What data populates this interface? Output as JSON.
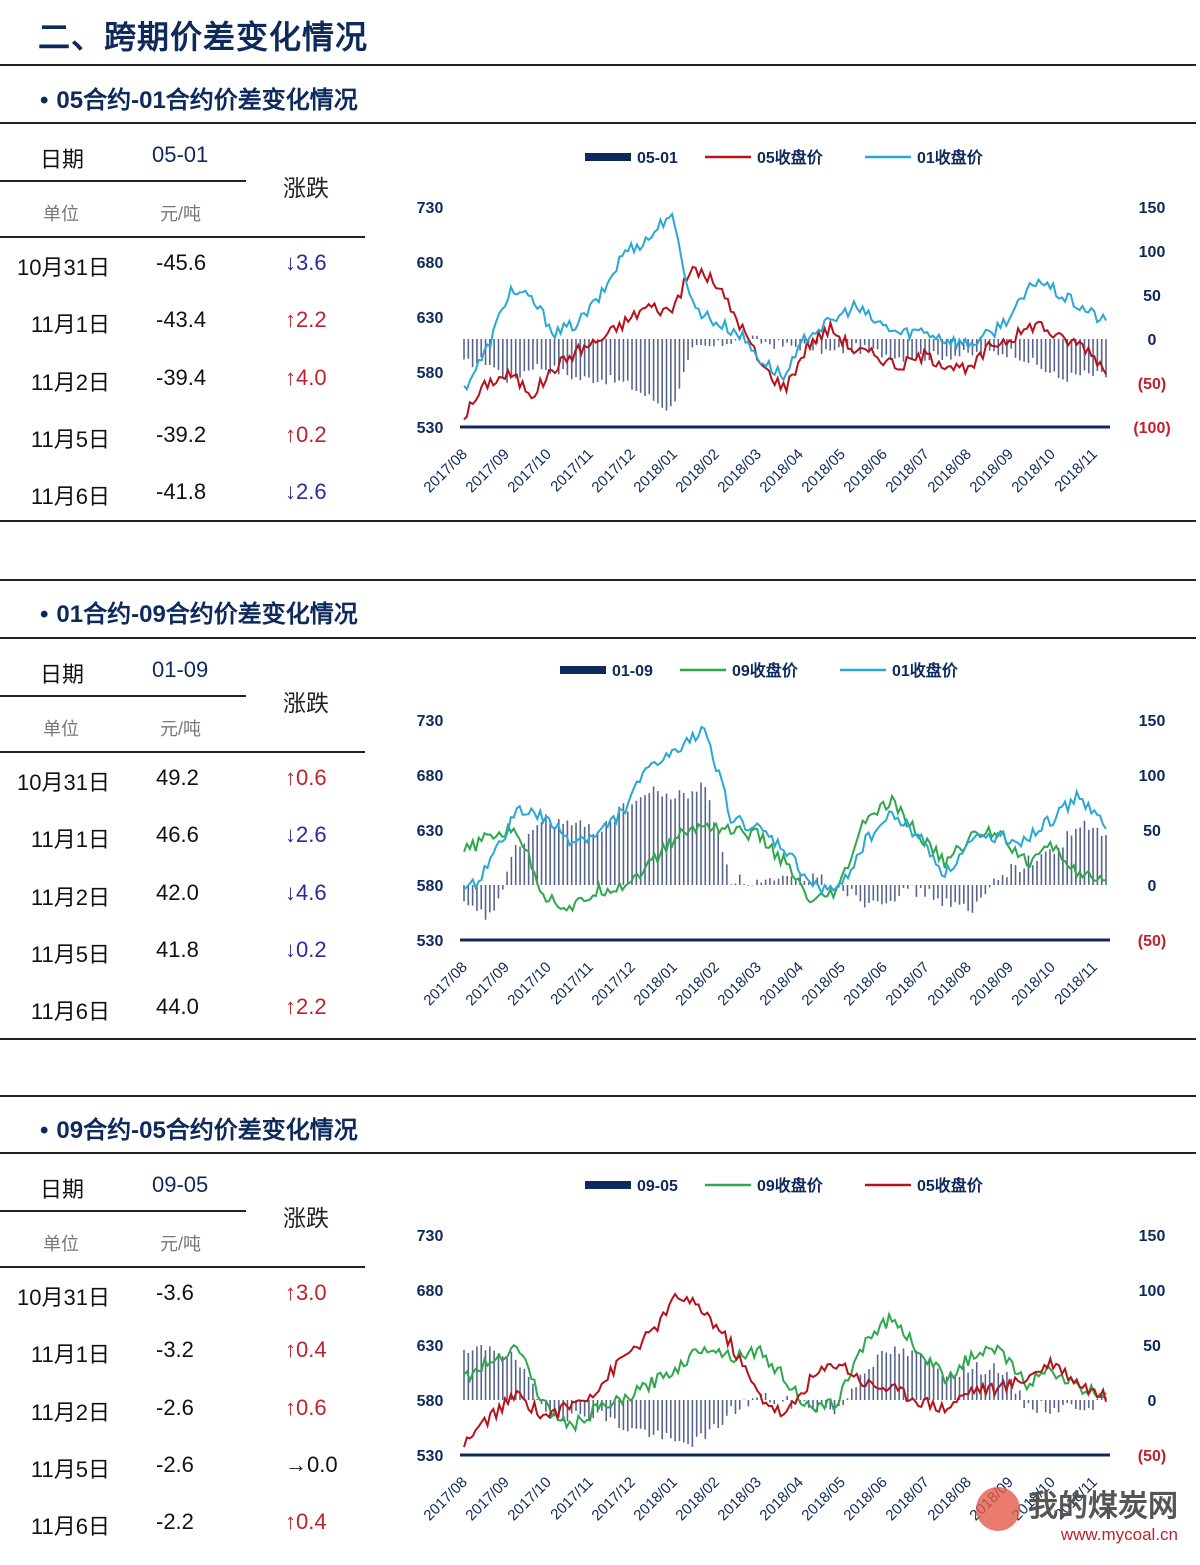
{
  "page_title": "二、跨期价差变化情况",
  "sections": [
    {
      "title": "05合约-01合约价差变化情况",
      "table": {
        "date_header": "日期",
        "code": "05-01",
        "change_header": "涨跌",
        "unit_label": "单位",
        "unit_value": "元/吨",
        "rows": [
          {
            "date": "10月31日",
            "value": "-45.6",
            "arrow": "↓",
            "change": "3.6",
            "dir": "down"
          },
          {
            "date": "11月1日",
            "value": "-43.4",
            "arrow": "↑",
            "change": "2.2",
            "dir": "up"
          },
          {
            "date": "11月2日",
            "value": "-39.4",
            "arrow": "↑",
            "change": "4.0",
            "dir": "up"
          },
          {
            "date": "11月5日",
            "value": "-39.2",
            "arrow": "↑",
            "change": "0.2",
            "dir": "up"
          },
          {
            "date": "11月6日",
            "value": "-41.8",
            "arrow": "↓",
            "change": "2.6",
            "dir": "down"
          }
        ]
      }
    },
    {
      "title": "01合约-09合约价差变化情况",
      "table": {
        "date_header": "日期",
        "code": "01-09",
        "change_header": "涨跌",
        "unit_label": "单位",
        "unit_value": "元/吨",
        "rows": [
          {
            "date": "10月31日",
            "value": "49.2",
            "arrow": "↑",
            "change": "0.6",
            "dir": "up"
          },
          {
            "date": "11月1日",
            "value": "46.6",
            "arrow": "↓",
            "change": "2.6",
            "dir": "down"
          },
          {
            "date": "11月2日",
            "value": "42.0",
            "arrow": "↓",
            "change": "4.6",
            "dir": "down"
          },
          {
            "date": "11月5日",
            "value": "41.8",
            "arrow": "↓",
            "change": "0.2",
            "dir": "down"
          },
          {
            "date": "11月6日",
            "value": "44.0",
            "arrow": "↑",
            "change": "2.2",
            "dir": "up"
          }
        ]
      }
    },
    {
      "title": "09合约-05合约价差变化情况",
      "table": {
        "date_header": "日期",
        "code": "09-05",
        "change_header": "涨跌",
        "unit_label": "单位",
        "unit_value": "元/吨",
        "rows": [
          {
            "date": "10月31日",
            "value": "-3.6",
            "arrow": "↑",
            "change": "3.0",
            "dir": "up"
          },
          {
            "date": "11月1日",
            "value": "-3.2",
            "arrow": "↑",
            "change": "0.4",
            "dir": "up"
          },
          {
            "date": "11月2日",
            "value": "-2.6",
            "arrow": "↑",
            "change": "0.6",
            "dir": "up"
          },
          {
            "date": "11月5日",
            "value": "-2.6",
            "arrow": "→",
            "change": "0.0",
            "dir": "flat"
          },
          {
            "date": "11月6日",
            "value": "-2.2",
            "arrow": "↑",
            "change": "0.4",
            "dir": "up"
          }
        ]
      }
    }
  ],
  "colors": {
    "navy": "#0e2a5c",
    "red": "#b5121b",
    "cyan": "#29a8d6",
    "green": "#2ea84a",
    "bar": "#3b4a7a"
  },
  "chart_data": [
    {
      "type": "bar+line",
      "legend": [
        "05-01",
        "05收盘价",
        "01收盘价"
      ],
      "left_axis": {
        "ticks": [
          "730",
          "680",
          "630",
          "580",
          "530"
        ],
        "range": [
          530,
          730
        ]
      },
      "right_axis": {
        "ticks": [
          "150",
          "100",
          "50",
          "0",
          "(50)",
          "(100)"
        ],
        "range": [
          -100,
          150
        ]
      },
      "x_ticks": [
        "2017/08",
        "2017/09",
        "2017/10",
        "2017/11",
        "2017/12",
        "2018/01",
        "2018/02",
        "2018/03",
        "2018/04",
        "2018/05",
        "2018/06",
        "2018/07",
        "2018/08",
        "2018/09",
        "2018/10",
        "2018/11"
      ],
      "series": [
        {
          "name": "05收盘价",
          "color": "red",
          "values": [
            540,
            570,
            578,
            560,
            585,
            600,
            610,
            625,
            640,
            635,
            675,
            660,
            625,
            585,
            565,
            605,
            620,
            600,
            595,
            585,
            595,
            588,
            580,
            605,
            612,
            625,
            610,
            605,
            583
          ]
        },
        {
          "name": "01收盘价",
          "color": "cyan",
          "values": [
            565,
            600,
            655,
            645,
            615,
            625,
            650,
            690,
            700,
            725,
            640,
            625,
            615,
            590,
            575,
            615,
            625,
            640,
            625,
            615,
            618,
            610,
            605,
            615,
            635,
            665,
            650,
            638,
            625
          ]
        },
        {
          "name": "05-01",
          "color": "bar",
          "values": [
            -28,
            -25,
            -48,
            -30,
            -35,
            -45,
            -45,
            -50,
            -65,
            -80,
            -12,
            -8,
            2,
            -3,
            -8,
            -8,
            -15,
            -10,
            -15,
            -20,
            -20,
            -18,
            -18,
            -15,
            -15,
            -30,
            -45,
            -40,
            -42
          ]
        }
      ]
    },
    {
      "type": "bar+line",
      "legend": [
        "01-09",
        "09收盘价",
        "01收盘价"
      ],
      "left_axis": {
        "ticks": [
          "730",
          "680",
          "630",
          "580",
          "530"
        ],
        "range": [
          530,
          730
        ]
      },
      "right_axis": {
        "ticks": [
          "150",
          "100",
          "50",
          "0",
          "(50)"
        ],
        "range": [
          -50,
          150
        ]
      },
      "x_ticks": [
        "2017/08",
        "2017/09",
        "2017/10",
        "2017/11",
        "2017/12",
        "2018/01",
        "2018/02",
        "2018/03",
        "2018/04",
        "2018/05",
        "2018/06",
        "2018/07",
        "2018/08",
        "2018/09",
        "2018/10",
        "2018/11"
      ],
      "series": [
        {
          "name": "09收盘价",
          "color": "green",
          "values": [
            610,
            625,
            630,
            570,
            558,
            575,
            580,
            600,
            625,
            635,
            630,
            625,
            600,
            562,
            575,
            640,
            655,
            625,
            600,
            625,
            630,
            600,
            615,
            590,
            580
          ]
        },
        {
          "name": "01收盘价",
          "color": "cyan",
          "values": [
            570,
            600,
            650,
            640,
            620,
            625,
            650,
            690,
            700,
            725,
            640,
            630,
            612,
            580,
            575,
            620,
            645,
            625,
            590,
            620,
            625,
            620,
            640,
            662,
            632
          ]
        },
        {
          "name": "01-09",
          "color": "bar",
          "values": [
            -20,
            -30,
            35,
            60,
            55,
            50,
            70,
            85,
            80,
            90,
            5,
            2,
            3,
            8,
            0,
            -15,
            -10,
            -5,
            -15,
            -25,
            10,
            20,
            30,
            55,
            44
          ]
        }
      ]
    },
    {
      "type": "bar+line",
      "legend": [
        "09-05",
        "09收盘价",
        "05收盘价"
      ],
      "left_axis": {
        "ticks": [
          "730",
          "680",
          "630",
          "580",
          "530"
        ],
        "range": [
          530,
          730
        ]
      },
      "right_axis": {
        "ticks": [
          "150",
          "100",
          "50",
          "0",
          "(50)"
        ],
        "range": [
          -50,
          150
        ]
      },
      "x_ticks": [
        "2017/08",
        "2017/09",
        "2017/10",
        "2017/11",
        "2017/12",
        "2018/01",
        "2018/02",
        "2018/03",
        "2018/04",
        "2018/05",
        "2018/06",
        "2018/07",
        "2018/08",
        "2018/09",
        "2018/10",
        "2018/11"
      ],
      "series": [
        {
          "name": "09收盘价",
          "color": "green",
          "values": [
            600,
            615,
            630,
            575,
            555,
            572,
            580,
            595,
            610,
            630,
            620,
            625,
            600,
            568,
            580,
            635,
            655,
            625,
            600,
            620,
            625,
            595,
            608,
            590,
            585
          ]
        },
        {
          "name": "05收盘价",
          "color": "red",
          "values": [
            540,
            565,
            585,
            565,
            575,
            590,
            620,
            640,
            675,
            660,
            630,
            585,
            565,
            600,
            615,
            595,
            590,
            580,
            572,
            590,
            590,
            600,
            615,
            595,
            582
          ]
        },
        {
          "name": "09-05",
          "color": "bar",
          "values": [
            40,
            50,
            35,
            -10,
            -15,
            -12,
            -25,
            -30,
            -40,
            -35,
            -10,
            3,
            -2,
            -5,
            -10,
            30,
            45,
            40,
            25,
            28,
            30,
            -5,
            -8,
            -5,
            -2
          ]
        }
      ]
    }
  ],
  "watermark": {
    "cn": "我的煤炭网",
    "en": "www.mycoal.cn"
  }
}
